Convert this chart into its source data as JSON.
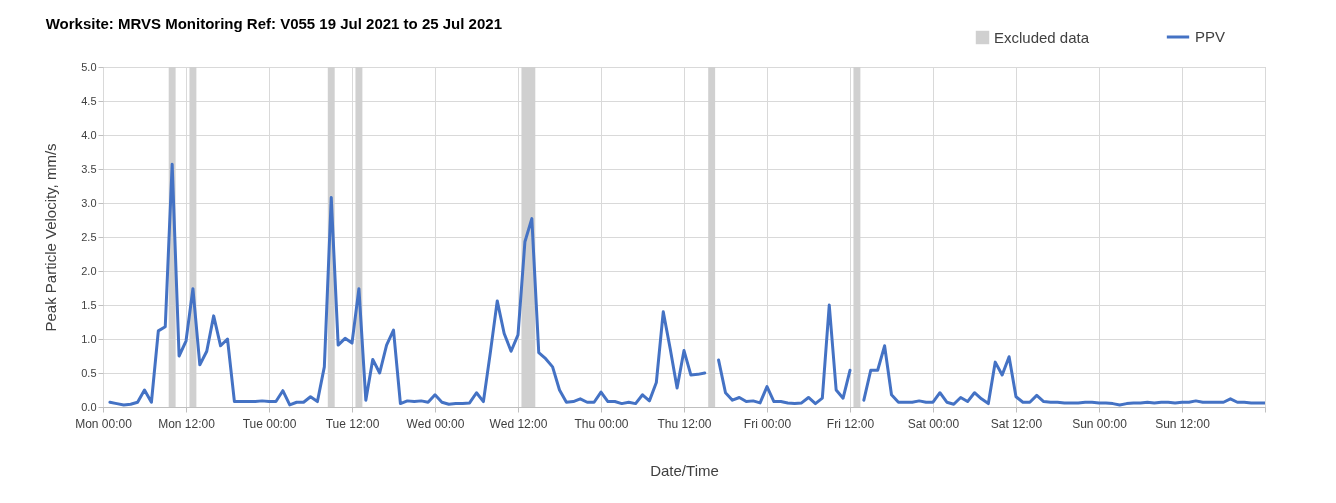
{
  "chart_data": {
    "type": "line",
    "title": "Worksite: MRVS   Monitoring Ref: V055    19 Jul 2021 to 25 Jul 2021",
    "xlabel": "Date/Time",
    "ylabel": "Peak Particle Velocity, mm/s",
    "x": [
      "2021-07-19T01:00",
      "2021-07-19T02:00",
      "2021-07-19T03:00",
      "2021-07-19T04:00",
      "2021-07-19T05:00",
      "2021-07-19T06:00",
      "2021-07-19T07:00",
      "2021-07-19T08:00",
      "2021-07-19T09:00",
      "2021-07-19T10:00",
      "2021-07-19T11:00",
      "2021-07-19T12:00",
      "2021-07-19T13:00",
      "2021-07-19T14:00",
      "2021-07-19T15:00",
      "2021-07-19T16:00",
      "2021-07-19T17:00",
      "2021-07-19T18:00",
      "2021-07-19T19:00",
      "2021-07-19T20:00",
      "2021-07-19T21:00",
      "2021-07-19T22:00",
      "2021-07-19T23:00",
      "2021-07-20T00:00",
      "2021-07-20T01:00",
      "2021-07-20T02:00",
      "2021-07-20T03:00",
      "2021-07-20T04:00",
      "2021-07-20T05:00",
      "2021-07-20T06:00",
      "2021-07-20T07:00",
      "2021-07-20T08:00",
      "2021-07-20T09:00",
      "2021-07-20T10:00",
      "2021-07-20T11:00",
      "2021-07-20T12:00",
      "2021-07-20T13:00",
      "2021-07-20T14:00",
      "2021-07-20T15:00",
      "2021-07-20T16:00",
      "2021-07-20T17:00",
      "2021-07-20T18:00",
      "2021-07-20T19:00",
      "2021-07-20T20:00",
      "2021-07-20T21:00",
      "2021-07-20T22:00",
      "2021-07-20T23:00",
      "2021-07-21T00:00",
      "2021-07-21T01:00",
      "2021-07-21T02:00",
      "2021-07-21T03:00",
      "2021-07-21T04:00",
      "2021-07-21T05:00",
      "2021-07-21T06:00",
      "2021-07-21T07:00",
      "2021-07-21T08:00",
      "2021-07-21T09:00",
      "2021-07-21T10:00",
      "2021-07-21T11:00",
      "2021-07-21T12:00",
      "2021-07-21T13:00",
      "2021-07-21T14:00",
      "2021-07-21T15:00",
      "2021-07-21T16:00",
      "2021-07-21T17:00",
      "2021-07-21T18:00",
      "2021-07-21T19:00",
      "2021-07-21T20:00",
      "2021-07-21T21:00",
      "2021-07-21T22:00",
      "2021-07-21T23:00",
      "2021-07-22T00:00",
      "2021-07-22T01:00",
      "2021-07-22T02:00",
      "2021-07-22T03:00",
      "2021-07-22T04:00",
      "2021-07-22T05:00",
      "2021-07-22T06:00",
      "2021-07-22T07:00",
      "2021-07-22T08:00",
      "2021-07-22T09:00",
      "2021-07-22T10:00",
      "2021-07-22T11:00",
      "2021-07-22T12:00",
      "2021-07-22T13:00",
      "2021-07-22T14:00",
      "2021-07-22T15:00",
      "2021-07-22T16:00",
      "2021-07-22T17:00",
      "2021-07-22T18:00",
      "2021-07-22T19:00",
      "2021-07-22T20:00",
      "2021-07-22T21:00",
      "2021-07-22T22:00",
      "2021-07-22T23:00",
      "2021-07-23T00:00",
      "2021-07-23T01:00",
      "2021-07-23T02:00",
      "2021-07-23T03:00",
      "2021-07-23T04:00",
      "2021-07-23T05:00",
      "2021-07-23T06:00",
      "2021-07-23T07:00",
      "2021-07-23T08:00",
      "2021-07-23T09:00",
      "2021-07-23T10:00",
      "2021-07-23T11:00",
      "2021-07-23T12:00",
      "2021-07-23T13:00",
      "2021-07-23T14:00",
      "2021-07-23T15:00",
      "2021-07-23T16:00",
      "2021-07-23T17:00",
      "2021-07-23T18:00",
      "2021-07-23T19:00",
      "2021-07-23T20:00",
      "2021-07-23T21:00",
      "2021-07-23T22:00",
      "2021-07-23T23:00",
      "2021-07-24T00:00",
      "2021-07-24T01:00",
      "2021-07-24T02:00",
      "2021-07-24T03:00",
      "2021-07-24T04:00",
      "2021-07-24T05:00",
      "2021-07-24T06:00",
      "2021-07-24T07:00",
      "2021-07-24T08:00",
      "2021-07-24T09:00",
      "2021-07-24T10:00",
      "2021-07-24T11:00",
      "2021-07-24T12:00",
      "2021-07-24T13:00",
      "2021-07-24T14:00",
      "2021-07-24T15:00",
      "2021-07-24T16:00",
      "2021-07-24T17:00",
      "2021-07-24T18:00",
      "2021-07-24T19:00",
      "2021-07-24T20:00",
      "2021-07-24T21:00",
      "2021-07-24T22:00",
      "2021-07-24T23:00",
      "2021-07-25T00:00",
      "2021-07-25T01:00",
      "2021-07-25T02:00",
      "2021-07-25T03:00",
      "2021-07-25T04:00",
      "2021-07-25T05:00",
      "2021-07-25T06:00",
      "2021-07-25T07:00",
      "2021-07-25T08:00",
      "2021-07-25T09:00",
      "2021-07-25T10:00",
      "2021-07-25T11:00",
      "2021-07-25T12:00",
      "2021-07-25T13:00",
      "2021-07-25T14:00",
      "2021-07-25T15:00",
      "2021-07-25T16:00",
      "2021-07-25T17:00",
      "2021-07-25T18:00",
      "2021-07-25T19:00",
      "2021-07-25T20:00",
      "2021-07-25T21:00",
      "2021-07-25T22:00",
      "2021-07-25T23:00",
      "2021-07-26T00:00"
    ],
    "series": [
      {
        "name": "PPV",
        "color": "#4472c4",
        "values": [
          0.07,
          0.05,
          0.03,
          0.04,
          0.07,
          0.25,
          0.07,
          1.12,
          1.18,
          3.57,
          0.75,
          0.97,
          1.74,
          0.62,
          0.82,
          1.34,
          0.9,
          1.0,
          0.08,
          0.08,
          0.08,
          0.08,
          0.09,
          0.08,
          0.08,
          0.24,
          0.03,
          0.07,
          0.07,
          0.15,
          0.08,
          0.59,
          3.08,
          0.91,
          1.01,
          0.94,
          1.74,
          0.1,
          0.7,
          0.5,
          0.91,
          1.13,
          0.05,
          0.09,
          0.08,
          0.09,
          0.07,
          0.18,
          0.07,
          0.04,
          0.05,
          0.05,
          0.06,
          0.21,
          0.08,
          0.8,
          1.56,
          1.08,
          0.82,
          1.06,
          2.43,
          2.77,
          0.8,
          0.71,
          0.59,
          0.25,
          0.07,
          0.08,
          0.12,
          0.07,
          0.07,
          0.22,
          0.08,
          0.08,
          0.05,
          0.07,
          0.05,
          0.18,
          0.09,
          0.36,
          1.4,
          0.86,
          0.28,
          0.83,
          0.47,
          0.48,
          0.5,
          null,
          0.69,
          0.21,
          0.1,
          0.14,
          0.08,
          0.09,
          0.06,
          0.3,
          0.08,
          0.08,
          0.06,
          0.05,
          0.06,
          0.14,
          0.05,
          0.13,
          1.5,
          0.25,
          0.13,
          0.54,
          null,
          0.1,
          0.54,
          0.54,
          0.9,
          0.18,
          0.07,
          0.07,
          0.07,
          0.09,
          0.07,
          0.07,
          0.21,
          0.07,
          0.04,
          0.14,
          0.08,
          0.21,
          0.12,
          0.05,
          0.66,
          0.47,
          0.74,
          0.15,
          0.07,
          0.07,
          0.17,
          0.08,
          0.07,
          0.07,
          0.06,
          0.06,
          0.06,
          0.07,
          0.07,
          0.06,
          0.06,
          0.05,
          0.03,
          0.05,
          0.06,
          0.06,
          0.07,
          0.06,
          0.07,
          0.07,
          0.06,
          0.07,
          0.07,
          0.09,
          0.07,
          0.07,
          0.07,
          0.07,
          0.12,
          0.07,
          0.07,
          0.06,
          0.06,
          0.06
        ]
      }
    ],
    "bands": [
      {
        "axis": "x",
        "from": "2021-07-19T09:30",
        "to": "2021-07-19T10:30",
        "label": "Excluded data",
        "color": "#d0d0d0"
      },
      {
        "axis": "x",
        "from": "2021-07-19T12:30",
        "to": "2021-07-19T13:30",
        "color": "#d0d0d0"
      },
      {
        "axis": "x",
        "from": "2021-07-20T08:30",
        "to": "2021-07-20T09:30",
        "color": "#d0d0d0"
      },
      {
        "axis": "x",
        "from": "2021-07-20T12:30",
        "to": "2021-07-20T13:30",
        "color": "#d0d0d0"
      },
      {
        "axis": "x",
        "from": "2021-07-21T12:30",
        "to": "2021-07-21T14:30",
        "color": "#d0d0d0"
      },
      {
        "axis": "x",
        "from": "2021-07-22T15:30",
        "to": "2021-07-22T16:30",
        "color": "#d0d0d0"
      },
      {
        "axis": "x",
        "from": "2021-07-23T12:30",
        "to": "2021-07-23T13:30",
        "color": "#d0d0d0"
      }
    ],
    "xlim": [
      "2021-07-19T00:00",
      "2021-07-26T00:00"
    ],
    "xticks": [
      {
        "value": "2021-07-19T00:00",
        "label": "Mon 00:00"
      },
      {
        "value": "2021-07-19T12:00",
        "label": "Mon 12:00"
      },
      {
        "value": "2021-07-20T00:00",
        "label": "Tue 00:00"
      },
      {
        "value": "2021-07-20T12:00",
        "label": "Tue 12:00"
      },
      {
        "value": "2021-07-21T00:00",
        "label": "Wed 00:00"
      },
      {
        "value": "2021-07-21T12:00",
        "label": "Wed 12:00"
      },
      {
        "value": "2021-07-22T00:00",
        "label": "Thu 00:00"
      },
      {
        "value": "2021-07-22T12:00",
        "label": "Thu 12:00"
      },
      {
        "value": "2021-07-23T00:00",
        "label": "Fri 00:00"
      },
      {
        "value": "2021-07-23T12:00",
        "label": "Fri 12:00"
      },
      {
        "value": "2021-07-24T00:00",
        "label": "Sat 00:00"
      },
      {
        "value": "2021-07-24T12:00",
        "label": "Sat 12:00"
      },
      {
        "value": "2021-07-25T00:00",
        "label": "Sun 00:00"
      },
      {
        "value": "2021-07-25T12:00",
        "label": "Sun 12:00"
      },
      {
        "value": "2021-07-26T00:00",
        "label": null
      }
    ],
    "ylim": [
      0,
      5
    ],
    "yticks": [
      {
        "value": 0,
        "label": "0.0"
      },
      {
        "value": 0.5,
        "label": "0.5"
      },
      {
        "value": 1,
        "label": "1.0"
      },
      {
        "value": 1.5,
        "label": "1.5"
      },
      {
        "value": 2,
        "label": "2.0"
      },
      {
        "value": 2.5,
        "label": "2.5"
      },
      {
        "value": 3,
        "label": "3.0"
      },
      {
        "value": 3.5,
        "label": "3.5"
      },
      {
        "value": 4,
        "label": "4.0"
      },
      {
        "value": 4.5,
        "label": "4.5"
      },
      {
        "value": 5,
        "label": "5.0"
      }
    ],
    "grid": true,
    "legend": "top right",
    "line_style": "solid",
    "marker": "none"
  }
}
